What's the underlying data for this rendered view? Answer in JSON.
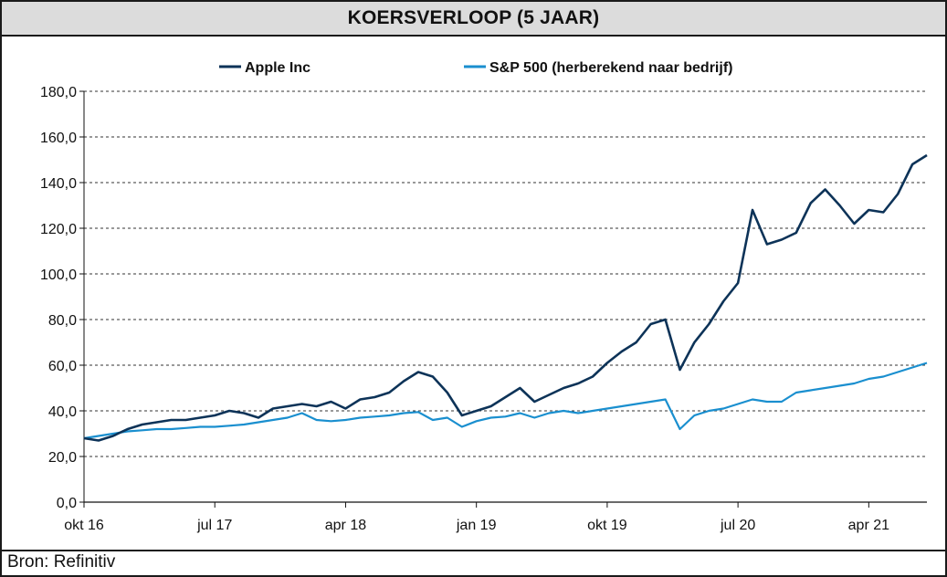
{
  "title": "KOERSVERLOOP (5 JAAR)",
  "source": "Bron: Refinitiv",
  "colors": {
    "apple": "#0d3358",
    "sp500": "#1a8fcf",
    "grid": "#333333",
    "title_bg": "#dcdcdc"
  },
  "chart_data": {
    "type": "line",
    "title": "KOERSVERLOOP (5 JAAR)",
    "ylim": [
      0,
      180
    ],
    "yticks": [
      0,
      20,
      40,
      60,
      80,
      100,
      120,
      140,
      160,
      180
    ],
    "ytick_labels": [
      "0,0",
      "20,0",
      "40,0",
      "60,0",
      "80,0",
      "100,0",
      "120,0",
      "140,0",
      "160,0",
      "180,0"
    ],
    "xlim": [
      "2016-10",
      "2021-08"
    ],
    "xticks": [
      "2016-10",
      "2017-07",
      "2018-04",
      "2019-01",
      "2019-10",
      "2020-07",
      "2021-04"
    ],
    "xtick_labels": [
      "okt 16",
      "jul 17",
      "apr 18",
      "jan 19",
      "okt 19",
      "jul 20",
      "apr 21"
    ],
    "grid": "horizontal dashed",
    "legend_position": "top",
    "series": [
      {
        "name": "Apple Inc",
        "x": [
          "2016-10",
          "2016-11",
          "2016-12",
          "2017-01",
          "2017-02",
          "2017-03",
          "2017-04",
          "2017-05",
          "2017-06",
          "2017-07",
          "2017-08",
          "2017-09",
          "2017-10",
          "2017-11",
          "2017-12",
          "2018-01",
          "2018-02",
          "2018-03",
          "2018-04",
          "2018-05",
          "2018-06",
          "2018-07",
          "2018-08",
          "2018-09",
          "2018-10",
          "2018-11",
          "2018-12",
          "2019-01",
          "2019-02",
          "2019-03",
          "2019-04",
          "2019-05",
          "2019-06",
          "2019-07",
          "2019-08",
          "2019-09",
          "2019-10",
          "2019-11",
          "2019-12",
          "2020-01",
          "2020-02",
          "2020-03",
          "2020-04",
          "2020-05",
          "2020-06",
          "2020-07",
          "2020-08",
          "2020-09",
          "2020-10",
          "2020-11",
          "2020-12",
          "2021-01",
          "2021-02",
          "2021-03",
          "2021-04",
          "2021-05",
          "2021-06",
          "2021-07",
          "2021-08"
        ],
        "values": [
          28,
          27,
          29,
          32,
          34,
          35,
          36,
          36,
          37,
          38,
          40,
          39,
          37,
          41,
          42,
          43,
          42,
          44,
          41,
          45,
          46,
          48,
          53,
          57,
          55,
          48,
          38,
          40,
          42,
          46,
          50,
          44,
          47,
          50,
          52,
          55,
          61,
          66,
          70,
          78,
          80,
          58,
          70,
          78,
          88,
          96,
          128,
          113,
          115,
          118,
          131,
          137,
          130,
          122,
          128,
          127,
          135,
          148,
          152
        ]
      },
      {
        "name": "S&P 500 (herberekend naar bedrijf)",
        "x": [
          "2016-10",
          "2016-11",
          "2016-12",
          "2017-01",
          "2017-02",
          "2017-03",
          "2017-04",
          "2017-05",
          "2017-06",
          "2017-07",
          "2017-08",
          "2017-09",
          "2017-10",
          "2017-11",
          "2017-12",
          "2018-01",
          "2018-02",
          "2018-03",
          "2018-04",
          "2018-05",
          "2018-06",
          "2018-07",
          "2018-08",
          "2018-09",
          "2018-10",
          "2018-11",
          "2018-12",
          "2019-01",
          "2019-02",
          "2019-03",
          "2019-04",
          "2019-05",
          "2019-06",
          "2019-07",
          "2019-08",
          "2019-09",
          "2019-10",
          "2019-11",
          "2019-12",
          "2020-01",
          "2020-02",
          "2020-03",
          "2020-04",
          "2020-05",
          "2020-06",
          "2020-07",
          "2020-08",
          "2020-09",
          "2020-10",
          "2020-11",
          "2020-12",
          "2021-01",
          "2021-02",
          "2021-03",
          "2021-04",
          "2021-05",
          "2021-06",
          "2021-07",
          "2021-08"
        ],
        "values": [
          28,
          29,
          30,
          31,
          31.5,
          32,
          32,
          32.5,
          33,
          33,
          33.5,
          34,
          35,
          36,
          37,
          39,
          36,
          35.5,
          36,
          37,
          37.5,
          38,
          39,
          39.5,
          36,
          37,
          33,
          35.5,
          37,
          37.5,
          39,
          37,
          39,
          40,
          39,
          40,
          41,
          42,
          43,
          44,
          45,
          32,
          38,
          40,
          41,
          43,
          45,
          44,
          44,
          48,
          49,
          50,
          51,
          52,
          54,
          55,
          57,
          59,
          61
        ]
      }
    ]
  }
}
